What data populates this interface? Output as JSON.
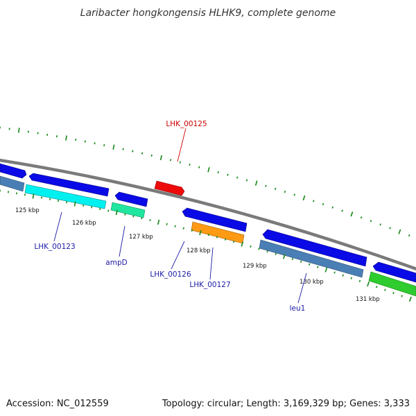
{
  "header": {
    "title": "Laribacter hongkongensis HLHK9, complete genome"
  },
  "footer": {
    "accession": "Accession: NC_012559",
    "summary": "Topology: circular; Length: 3,169,329 bp; Genes: 3,333"
  },
  "colors": {
    "backbone": "#808080",
    "gc_marks": "#1e8c1e",
    "label_blue": "#1a1aa6",
    "label_red": "#cc0000"
  },
  "scale_labels": [
    "125 kbp",
    "126 kbp",
    "127 kbp",
    "128 kbp",
    "129 kbp",
    "130 kbp",
    "131 kbp"
  ],
  "gene_labels": [
    {
      "text": "LHK_00125",
      "color": "#cc0000"
    },
    {
      "text": "LHK_00123",
      "color": "#1a1aa6"
    },
    {
      "text": "ampD",
      "color": "#1a1aa6"
    },
    {
      "text": "LHK_00126",
      "color": "#1a1aa6"
    },
    {
      "text": "LHK_00127",
      "color": "#1a1aa6"
    },
    {
      "text": "leu1",
      "color": "#1a1aa6"
    }
  ]
}
